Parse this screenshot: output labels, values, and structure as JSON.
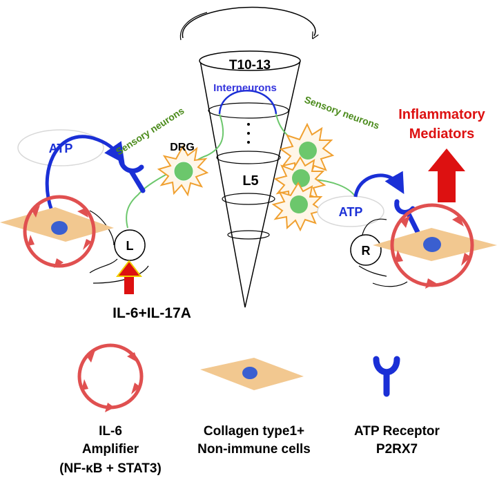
{
  "labels": {
    "spinal_segment_top": "T10-13",
    "interneurons": "Interneurons",
    "dots": "·\n·\n·",
    "spinal_segment_l5": "L5",
    "drg": "DRG",
    "sensory_left": "Sensory neurons",
    "sensory_right": "Sensory neurons",
    "atp_left": "ATP",
    "atp_right": "ATP",
    "joint_left": "L",
    "joint_right": "R",
    "injection": "IL-6+IL-17A",
    "inflammatory_line1": "Inflammatory",
    "inflammatory_line2": "Mediators"
  },
  "legend": {
    "amplifier": [
      "IL-6",
      "Amplifier",
      "(NF-κB + STAT3)"
    ],
    "cells": [
      "Collagen type1+",
      "Non-immune cells"
    ],
    "receptor": [
      "ATP Receptor",
      "P2RX7"
    ]
  },
  "colors": {
    "amplifier": "#e05050",
    "cell_body": "#f2c890",
    "nucleus": "#3a5fd0",
    "receptor": "#1a2fd6",
    "neuron": "#6cc76c",
    "drg_star": "#f0a030",
    "sensory_text": "#4a8a1a",
    "interneuron_text": "#3333dd",
    "mediator_text": "#dd1111",
    "arrow_red": "#dd1111"
  }
}
